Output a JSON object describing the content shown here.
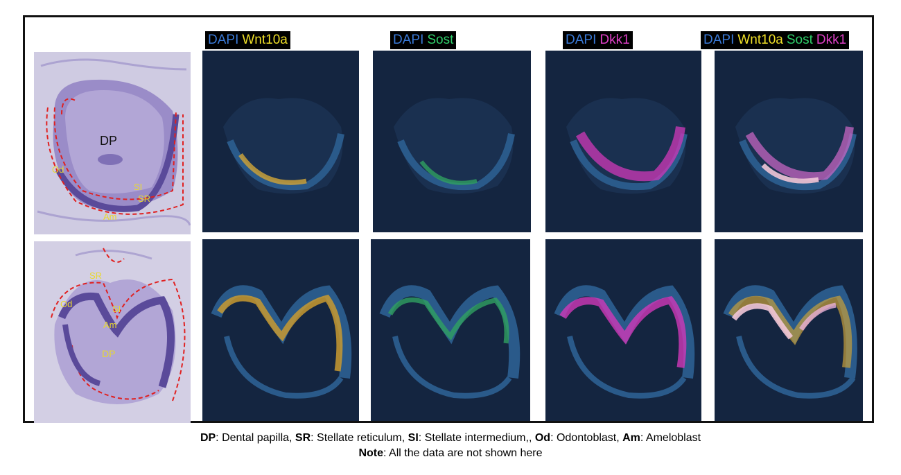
{
  "channel_headers": [
    [
      {
        "text": "DAPI",
        "color": "#3a7ad8"
      },
      {
        "text": "Wnt10a",
        "color": "#f0e028"
      }
    ],
    [
      {
        "text": "DAPI",
        "color": "#3a7ad8"
      },
      {
        "text": "Sost",
        "color": "#2fcf6a"
      }
    ],
    [
      {
        "text": "DAPI",
        "color": "#3a7ad8"
      },
      {
        "text": "Dkk1",
        "color": "#e040c8"
      }
    ],
    [
      {
        "text": "DAPI",
        "color": "#3a7ad8"
      },
      {
        "text": "Wnt10a",
        "color": "#f0e028"
      },
      {
        "text": "Sost",
        "color": "#2fcf6a"
      },
      {
        "text": "Dkk1",
        "color": "#e040c8"
      }
    ]
  ],
  "histology_labels": {
    "top": {
      "dp": "DP",
      "od": "Od",
      "si": "SI",
      "sr": "SR",
      "am": "Am"
    },
    "bottom": {
      "sr": "SR",
      "od": "Od",
      "si": "SI",
      "am": "Am",
      "dp": "DP"
    }
  },
  "legend": {
    "line1": [
      {
        "abbr": "DP",
        "desc": ": Dental papilla, "
      },
      {
        "abbr": "SR",
        "desc": ": Stellate reticulum, "
      },
      {
        "abbr": "SI",
        "desc": ": Stellate intermedium,,  "
      },
      {
        "abbr": "Od",
        "desc": ": Odontoblast, "
      },
      {
        "abbr": "Am",
        "desc": ": Ameloblast"
      }
    ],
    "line2": {
      "abbr": "Note",
      "desc": ": All the data are not shown here"
    }
  },
  "colors": {
    "dapi_blue": "#3a7ad8",
    "wnt10a_yellow": "#f0e028",
    "sost_green": "#2fcf6a",
    "dkk1_magenta": "#e040c8",
    "outline_red": "#e02020",
    "he_purple": "#6a5aa8"
  }
}
